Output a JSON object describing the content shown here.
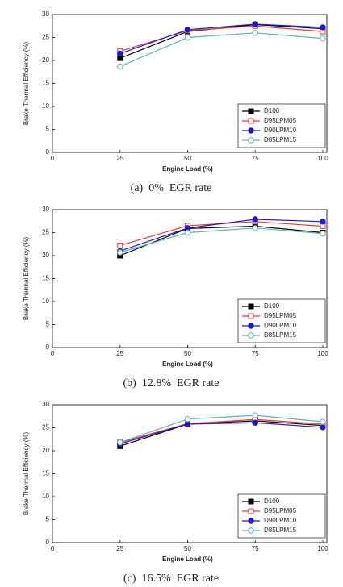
{
  "chart_data": [
    {
      "type": "line",
      "caption": "(a)  0%  EGR rate",
      "xlabel": "Engine Load (%)",
      "ylabel": "Brake Thermal Efficiency (%)",
      "x": [
        25,
        50,
        75,
        100
      ],
      "xlim": [
        0,
        100
      ],
      "xticks": [
        0,
        25,
        50,
        75,
        100
      ],
      "ylim": [
        0,
        30
      ],
      "yticks": [
        0,
        5,
        10,
        15,
        20,
        25,
        30
      ],
      "legend": "lower right",
      "series": [
        {
          "name": "D100",
          "color": "#000000",
          "marker": "square",
          "filled": true,
          "values": [
            20.5,
            26.3,
            27.8,
            26.9
          ]
        },
        {
          "name": "D95LPM05",
          "color": "#e03c31",
          "marker": "square",
          "filled": false,
          "values": [
            22.0,
            26.5,
            27.5,
            26.3
          ]
        },
        {
          "name": "D90LPM10",
          "color": "#1a1ad6",
          "marker": "circle",
          "filled": true,
          "values": [
            21.5,
            26.7,
            27.9,
            27.2
          ]
        },
        {
          "name": "D85LPM15",
          "color": "#5fb3b3",
          "marker": "circle",
          "filled": false,
          "values": [
            18.7,
            25.0,
            26.0,
            24.8
          ]
        }
      ]
    },
    {
      "type": "line",
      "caption": "(b)  12.8%  EGR rate",
      "xlabel": "Engine Load (%)",
      "ylabel": "Brake Thermal Efficiency (%)",
      "x": [
        25,
        50,
        75,
        100
      ],
      "xlim": [
        0,
        100
      ],
      "xticks": [
        0,
        25,
        50,
        75,
        100
      ],
      "ylim": [
        0,
        30
      ],
      "yticks": [
        0,
        5,
        10,
        15,
        20,
        25,
        30
      ],
      "legend": "lower right",
      "series": [
        {
          "name": "D100",
          "color": "#000000",
          "marker": "square",
          "filled": true,
          "values": [
            20.0,
            25.9,
            26.4,
            25.0
          ]
        },
        {
          "name": "D95LPM05",
          "color": "#e03c31",
          "marker": "square",
          "filled": false,
          "values": [
            22.2,
            26.5,
            27.4,
            26.4
          ]
        },
        {
          "name": "D90LPM10",
          "color": "#1a1ad6",
          "marker": "circle",
          "filled": true,
          "values": [
            21.0,
            26.0,
            27.9,
            27.4
          ]
        },
        {
          "name": "D85LPM15",
          "color": "#5fb3b3",
          "marker": "circle",
          "filled": false,
          "values": [
            20.7,
            25.0,
            26.0,
            24.8
          ]
        }
      ]
    },
    {
      "type": "line",
      "caption": "(c)  16.5%  EGR rate",
      "xlabel": "Engine Load (%)",
      "ylabel": "Brake Thermal Efficiency (%)",
      "x": [
        25,
        50,
        75,
        100
      ],
      "xlim": [
        0,
        100
      ],
      "xticks": [
        0,
        25,
        50,
        75,
        100
      ],
      "ylim": [
        0,
        30
      ],
      "yticks": [
        0,
        5,
        10,
        15,
        20,
        25,
        30
      ],
      "legend": "lower right",
      "series": [
        {
          "name": "D100",
          "color": "#000000",
          "marker": "square",
          "filled": true,
          "values": [
            21.0,
            25.8,
            26.5,
            25.5
          ]
        },
        {
          "name": "D95LPM05",
          "color": "#e03c31",
          "marker": "square",
          "filled": false,
          "values": [
            21.8,
            25.9,
            26.8,
            25.8
          ]
        },
        {
          "name": "D90LPM10",
          "color": "#1a1ad6",
          "marker": "circle",
          "filled": true,
          "values": [
            21.5,
            25.8,
            26.1,
            25.1
          ]
        },
        {
          "name": "D85LPM15",
          "color": "#5fb3b3",
          "marker": "circle",
          "filled": false,
          "values": [
            21.8,
            26.9,
            27.7,
            26.3
          ]
        }
      ]
    }
  ]
}
